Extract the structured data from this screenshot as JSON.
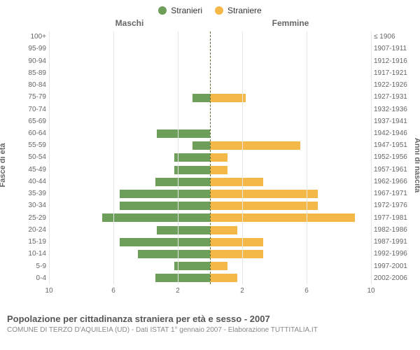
{
  "legend": {
    "male_series": "Stranieri",
    "female_series": "Straniere"
  },
  "colors": {
    "male": "#6d9e5a",
    "female": "#f3b847",
    "grid": "#e6e6e6",
    "center_line": "#556b2f",
    "text": "#666666",
    "background": "#ffffff"
  },
  "header": {
    "left": "Maschi",
    "right": "Femmine"
  },
  "axis_titles": {
    "left": "Fasce di età",
    "right": "Anni di nascita"
  },
  "x_axis": {
    "max": 10,
    "ticks": [
      10,
      6,
      2,
      2,
      6,
      10
    ]
  },
  "rows": [
    {
      "age": "100+",
      "birth": "≤ 1906",
      "m": 0,
      "f": 0
    },
    {
      "age": "95-99",
      "birth": "1907-1911",
      "m": 0,
      "f": 0
    },
    {
      "age": "90-94",
      "birth": "1912-1916",
      "m": 0,
      "f": 0
    },
    {
      "age": "85-89",
      "birth": "1917-1921",
      "m": 0,
      "f": 0
    },
    {
      "age": "80-84",
      "birth": "1922-1926",
      "m": 0,
      "f": 0
    },
    {
      "age": "75-79",
      "birth": "1927-1931",
      "m": 1.1,
      "f": 2.2
    },
    {
      "age": "70-74",
      "birth": "1932-1936",
      "m": 0,
      "f": 0
    },
    {
      "age": "65-69",
      "birth": "1937-1941",
      "m": 0,
      "f": 0
    },
    {
      "age": "60-64",
      "birth": "1942-1946",
      "m": 3.3,
      "f": 0
    },
    {
      "age": "55-59",
      "birth": "1947-1951",
      "m": 1.1,
      "f": 5.6
    },
    {
      "age": "50-54",
      "birth": "1952-1956",
      "m": 2.2,
      "f": 1.1
    },
    {
      "age": "45-49",
      "birth": "1957-1961",
      "m": 2.2,
      "f": 1.1
    },
    {
      "age": "40-44",
      "birth": "1962-1966",
      "m": 3.4,
      "f": 3.3
    },
    {
      "age": "35-39",
      "birth": "1967-1971",
      "m": 5.6,
      "f": 6.7
    },
    {
      "age": "30-34",
      "birth": "1972-1976",
      "m": 5.6,
      "f": 6.7
    },
    {
      "age": "25-29",
      "birth": "1977-1981",
      "m": 6.7,
      "f": 9.0
    },
    {
      "age": "20-24",
      "birth": "1982-1986",
      "m": 3.3,
      "f": 1.7
    },
    {
      "age": "15-19",
      "birth": "1987-1991",
      "m": 5.6,
      "f": 3.3
    },
    {
      "age": "10-14",
      "birth": "1992-1996",
      "m": 4.5,
      "f": 3.3
    },
    {
      "age": "5-9",
      "birth": "1997-2001",
      "m": 2.2,
      "f": 1.1
    },
    {
      "age": "0-4",
      "birth": "2002-2006",
      "m": 3.4,
      "f": 1.7
    }
  ],
  "footer": {
    "title": "Popolazione per cittadinanza straniera per età e sesso - 2007",
    "subtitle": "COMUNE DI TERZO D'AQUILEIA (UD) - Dati ISTAT 1° gennaio 2007 - Elaborazione TUTTITALIA.IT"
  },
  "typography": {
    "legend_fontsize": 12,
    "header_fontsize": 12,
    "ylabel_fontsize": 10,
    "xtick_fontsize": 10,
    "title_fontsize": 13,
    "subtitle_fontsize": 10
  }
}
